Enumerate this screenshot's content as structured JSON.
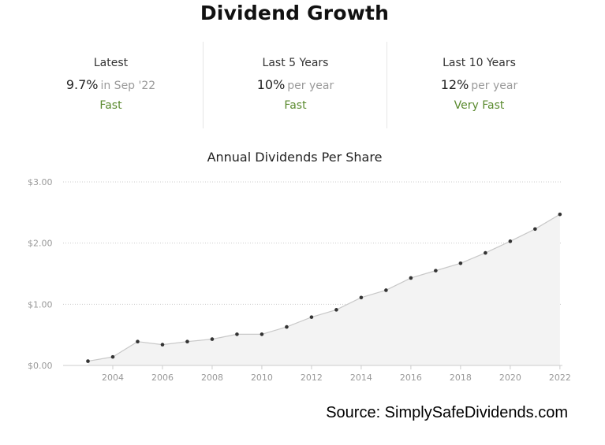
{
  "page": {
    "title": "Dividend Growth"
  },
  "stats": [
    {
      "label": "Latest",
      "value": "9.7%",
      "suffix": "in Sep '22",
      "rating": "Fast"
    },
    {
      "label": "Last 5 Years",
      "value": "10%",
      "suffix": "per year",
      "rating": "Fast"
    },
    {
      "label": "Last 10 Years",
      "value": "12%",
      "suffix": "per year",
      "rating": "Very Fast"
    }
  ],
  "colors": {
    "rating": "#5a8a2e",
    "area_fill": "#f3f3f3",
    "line": "#c8c8c8",
    "point": "#333333",
    "grid": "#cccccc"
  },
  "chart_data": {
    "type": "area",
    "title": "Annual Dividends Per Share",
    "xlabel": "",
    "ylabel": "",
    "x": [
      2003,
      2004,
      2005,
      2006,
      2007,
      2008,
      2009,
      2010,
      2011,
      2012,
      2013,
      2014,
      2015,
      2016,
      2017,
      2018,
      2019,
      2020,
      2021,
      2022
    ],
    "values": [
      0.07,
      0.14,
      0.39,
      0.34,
      0.39,
      0.43,
      0.51,
      0.51,
      0.63,
      0.79,
      0.91,
      1.11,
      1.23,
      1.43,
      1.55,
      1.67,
      1.84,
      2.03,
      2.23,
      2.47
    ],
    "xlim": [
      2002,
      2022.1
    ],
    "ylim": [
      0,
      3
    ],
    "y_ticks": [
      0,
      1,
      2,
      3
    ],
    "y_tick_labels": [
      "$0.00",
      "$1.00",
      "$2.00",
      "$3.00"
    ],
    "x_ticks": [
      2004,
      2006,
      2008,
      2010,
      2012,
      2014,
      2016,
      2018,
      2020,
      2022
    ],
    "x_tick_labels": [
      "2004",
      "2006",
      "2008",
      "2010",
      "2012",
      "2014",
      "2016",
      "2018",
      "2020",
      "2022"
    ],
    "grid": "horizontal dotted",
    "legend": "none"
  },
  "source": "Source: SimplySafeDividends.com"
}
